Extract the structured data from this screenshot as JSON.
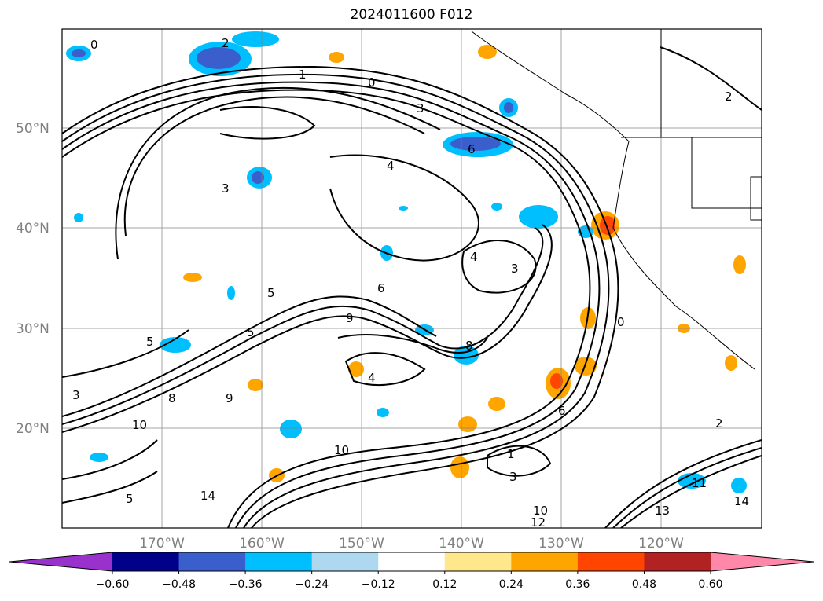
{
  "title": "2024011600 F012",
  "map": {
    "lat_labels": [
      "50°N",
      "40°N",
      "30°N",
      "20°N"
    ],
    "lon_labels": [
      "170°W",
      "160°W",
      "150°W",
      "140°W",
      "130°W",
      "120°W"
    ],
    "contour_labels": [
      "0",
      "1",
      "2",
      "3",
      "4",
      "5",
      "6",
      "8",
      "9",
      "10",
      "11",
      "12",
      "13",
      "14"
    ]
  },
  "colorbar": {
    "ticks": [
      "−0.60",
      "−0.48",
      "−0.36",
      "−0.24",
      "−0.12",
      "0.12",
      "0.24",
      "0.36",
      "0.48",
      "0.60"
    ],
    "colors": [
      "#9932CC",
      "#00008B",
      "#3A5FCD",
      "#00BFFF",
      "#ADD8F0",
      "#FFFFFF",
      "#FFE88C",
      "#FFA500",
      "#FF4500",
      "#B22222",
      "#FF88AA"
    ]
  }
}
